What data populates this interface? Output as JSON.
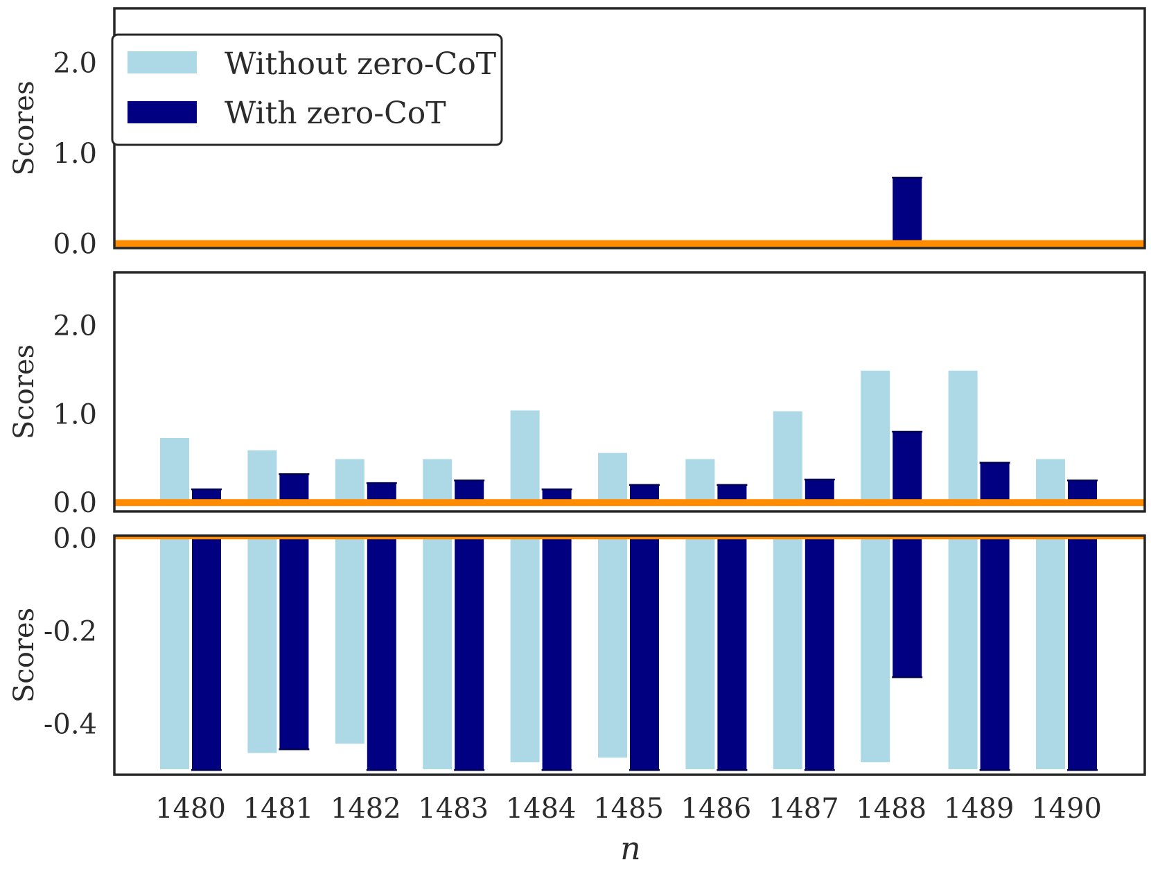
{
  "colors": {
    "without": "#add8e6",
    "with": "#000080",
    "baseline": "#ff8c00",
    "frame": "#262626"
  },
  "legend": {
    "without_label": "Without zero-CoT",
    "with_label": "With zero-CoT"
  },
  "chart_data": {
    "type": "bar",
    "categories": [
      "1480",
      "1481",
      "1482",
      "1483",
      "1484",
      "1485",
      "1486",
      "1487",
      "1488",
      "1489",
      "1490"
    ],
    "xlabel": "n",
    "panels": [
      {
        "ylabel": "Scores",
        "ylim": [
          -0.05,
          2.6
        ],
        "yticks": [
          0.0,
          1.0,
          2.0
        ],
        "ytick_labels": [
          "0.0",
          "1.0",
          "2.0"
        ],
        "baseline": 0.0,
        "series": [
          {
            "name": "Without zero-CoT",
            "values": [
              0,
              0,
              0,
              0,
              0,
              0,
              0,
              0,
              0,
              0,
              0
            ]
          },
          {
            "name": "With zero-CoT",
            "values": [
              0,
              0,
              0,
              0,
              0,
              0,
              0,
              0,
              0.73,
              0,
              0
            ]
          }
        ]
      },
      {
        "ylabel": "Scores",
        "ylim": [
          -0.1,
          2.6
        ],
        "yticks": [
          0.0,
          1.0,
          2.0
        ],
        "ytick_labels": [
          "0.0",
          "1.0",
          "2.0"
        ],
        "baseline": 0.0,
        "series": [
          {
            "name": "Without zero-CoT",
            "values": [
              0.74,
              0.6,
              0.5,
              0.5,
              1.05,
              0.57,
              0.5,
              1.04,
              1.5,
              1.5,
              0.5
            ]
          },
          {
            "name": "With zero-CoT",
            "values": [
              0.15,
              0.32,
              0.22,
              0.25,
              0.15,
              0.2,
              0.2,
              0.26,
              0.8,
              0.45,
              0.25
            ]
          }
        ]
      },
      {
        "ylabel": "Scores",
        "ylim": [
          -0.51,
          0.005
        ],
        "yticks": [
          0.0,
          -0.2,
          -0.4
        ],
        "ytick_labels": [
          "0.0",
          "-0.2",
          "-0.4"
        ],
        "baseline": 0.0,
        "series": [
          {
            "name": "Without zero-CoT",
            "values": [
              -0.5,
              -0.465,
              -0.445,
              -0.5,
              -0.485,
              -0.475,
              -0.5,
              -0.5,
              -0.485,
              -0.5,
              -0.5
            ]
          },
          {
            "name": "With zero-CoT",
            "values": [
              -0.5,
              -0.455,
              -0.5,
              -0.5,
              -0.5,
              -0.5,
              -0.5,
              -0.5,
              -0.3,
              -0.5,
              -0.5
            ]
          }
        ]
      }
    ]
  }
}
